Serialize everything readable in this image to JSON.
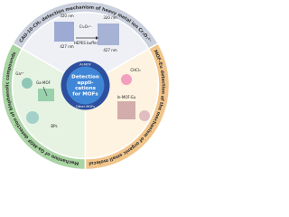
{
  "center": {
    "lines": [
      "Detection",
      "appli-",
      "cations",
      "for MOFs"
    ],
    "top_tag": "Al-MOF",
    "bottom_tag": "Other MOFs"
  },
  "sectors": [
    {
      "title": "CAU-10-CH₃ detection mechanism of heavy metal ion Cr₂O₇²⁻",
      "labels": [
        "320 nm",
        "427 nm",
        "Cr₂O₇²⁻",
        "HEPES buffer",
        "320 nm",
        "427 nm"
      ]
    },
    {
      "title": "Mechanism of Ga-MOF detection of bisphenolic compounds",
      "labels": [
        "Ga³⁺",
        "Ga-MOF",
        "BPs"
      ]
    },
    {
      "title": "In-MOF-Eu detection of the mechanism of organic small molecules",
      "labels": [
        "CHCl₃",
        "In-MOF-Eu"
      ]
    }
  ]
}
